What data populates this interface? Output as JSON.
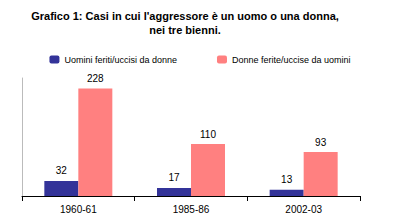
{
  "chart_data": {
    "type": "bar",
    "title": "Grafico 1: Casi in cui l'aggressore è un uomo o una donna,\nnei tre bienni.",
    "categories": [
      "1960-61",
      "1985-86",
      "2002-03"
    ],
    "series": [
      {
        "name": "Uomini feriti/uccisi da donne",
        "color": "#333399",
        "values": [
          32,
          17,
          13
        ]
      },
      {
        "name": "Donne ferite/uccise da uomini",
        "color": "#ff8080",
        "values": [
          228,
          110,
          93
        ]
      }
    ],
    "ylim": [
      0,
      250
    ],
    "data_labels": true,
    "tick_labels": "x",
    "legend": "top",
    "grid": false
  }
}
